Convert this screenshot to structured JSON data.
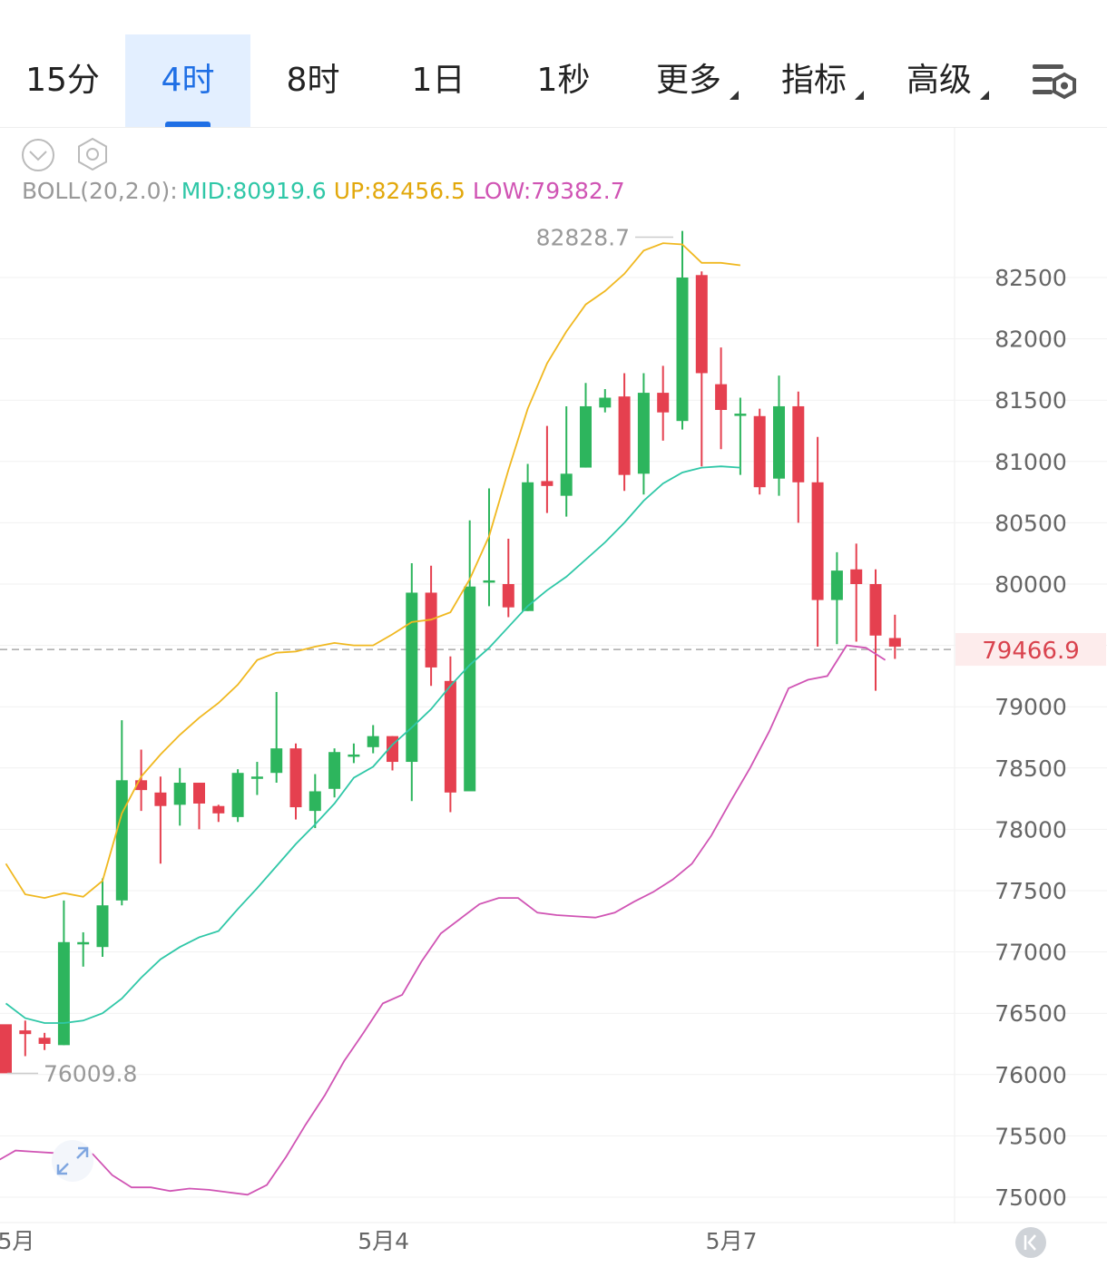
{
  "tabs": [
    {
      "label": "15分",
      "active": false,
      "dropdown": false
    },
    {
      "label": "4时",
      "active": true,
      "dropdown": false
    },
    {
      "label": "8时",
      "active": false,
      "dropdown": false
    },
    {
      "label": "1日",
      "active": false,
      "dropdown": false
    },
    {
      "label": "1秒",
      "active": false,
      "dropdown": false
    },
    {
      "label": "更多",
      "active": false,
      "dropdown": true
    },
    {
      "label": "指标",
      "active": false,
      "dropdown": true
    },
    {
      "label": "高级",
      "active": false,
      "dropdown": true
    }
  ],
  "toolbar": {
    "settings_icon": "chart-settings-icon",
    "collapse_icon": "chevron-down-circle-icon",
    "gear_icon": "hexagon-gear-icon",
    "expand_icon": "expand-arrows-icon",
    "back_icon": "back-to-latest-icon"
  },
  "indicator": {
    "name": "BOLL(20,2.0):",
    "mid": "MID:80919.6",
    "up": "UP:82456.5",
    "low": "LOW:79382.7"
  },
  "colors": {
    "up": "#2db55d",
    "down": "#e5404f",
    "mid": "#2fc7a7",
    "upper": "#f0b820",
    "lower": "#d054b4",
    "accent": "#1f6fe5",
    "price": "#d9434e"
  },
  "chart_data": {
    "type": "candlestick",
    "interval": "4时",
    "current_price": "79466.9",
    "high_marker": "82828.7",
    "low_marker": "76009.8",
    "ylim": [
      74850,
      82950
    ],
    "yticks": [
      75000,
      75500,
      76000,
      76500,
      77000,
      77500,
      78000,
      78500,
      79000,
      79500,
      80000,
      80500,
      81000,
      81500,
      82000,
      82500
    ],
    "ytick_labels": [
      "75000",
      "75500",
      "76000",
      "76500",
      "77000",
      "77500",
      "78000",
      "78500",
      "79000",
      "79500",
      "80000",
      "80500",
      "81000",
      "81500",
      "82000",
      "82500"
    ],
    "xlabels": [
      {
        "label": "5月",
        "index": -0.4
      },
      {
        "label": "5月4",
        "index": 18.6
      },
      {
        "label": "5月7",
        "index": 36.6
      }
    ],
    "candles": [
      [
        76410,
        76010,
        76380,
        76300
      ],
      [
        76360,
        76330,
        76440,
        76150
      ],
      [
        76300,
        76250,
        76340,
        76200
      ],
      [
        76240,
        77080,
        77420,
        76240
      ],
      [
        77080,
        77080,
        77160,
        76880
      ],
      [
        77040,
        77380,
        77600,
        76960
      ],
      [
        77420,
        78400,
        78890,
        77380
      ],
      [
        78400,
        78320,
        78650,
        78150
      ],
      [
        78300,
        78190,
        78430,
        77720
      ],
      [
        78200,
        78380,
        78500,
        78030
      ],
      [
        78380,
        78210,
        78380,
        78000
      ],
      [
        78190,
        78130,
        78200,
        78060
      ],
      [
        78100,
        78460,
        78490,
        78060
      ],
      [
        78430,
        78430,
        78550,
        78280
      ],
      [
        78460,
        78660,
        79120,
        78380
      ],
      [
        78660,
        78180,
        78700,
        78080
      ],
      [
        78150,
        78310,
        78450,
        78010
      ],
      [
        78330,
        78630,
        78660,
        78260
      ],
      [
        78610,
        78610,
        78700,
        78540
      ],
      [
        78670,
        78760,
        78850,
        78620
      ],
      [
        78760,
        78550,
        78760,
        78480
      ],
      [
        78550,
        79930,
        80170,
        78230
      ],
      [
        79930,
        79320,
        80150,
        79170
      ],
      [
        79210,
        78300,
        79410,
        78140
      ],
      [
        78310,
        79980,
        80520,
        78440
      ],
      [
        80030,
        80030,
        80780,
        79820
      ],
      [
        80000,
        79810,
        80370,
        79730
      ],
      [
        79780,
        80830,
        80980,
        79780
      ],
      [
        80840,
        80800,
        81290,
        80580
      ],
      [
        80720,
        80900,
        81450,
        80550
      ],
      [
        80950,
        81450,
        81640,
        80950
      ],
      [
        81440,
        81520,
        81590,
        81400
      ],
      [
        81530,
        80890,
        81720,
        80760
      ],
      [
        80900,
        81560,
        81720,
        80730
      ],
      [
        81560,
        81400,
        81780,
        81170
      ],
      [
        81330,
        82500,
        82880,
        81260
      ],
      [
        82520,
        81720,
        82550,
        80960
      ],
      [
        81630,
        81420,
        81930,
        81100
      ],
      [
        81390,
        81390,
        81520,
        80890
      ],
      [
        81370,
        80790,
        81430,
        80730
      ],
      [
        80860,
        81450,
        81700,
        80720
      ],
      [
        81450,
        80830,
        81570,
        80500
      ],
      [
        80830,
        79870,
        81200,
        79490
      ],
      [
        79870,
        80110,
        80260,
        79510
      ],
      [
        80120,
        80000,
        80330,
        79530
      ],
      [
        80000,
        79580,
        80120,
        79130
      ],
      [
        79560,
        79490,
        79750,
        79390
      ]
    ],
    "boll_mid_start": 0,
    "boll_mid": [
      76580,
      76460,
      76420,
      76420,
      76440,
      76500,
      76620,
      76790,
      76940,
      77040,
      77120,
      77170,
      77350,
      77520,
      77700,
      77880,
      78040,
      78210,
      78420,
      78510,
      78690,
      78830,
      78980,
      79170,
      79340,
      79480,
      79650,
      79820,
      79950,
      80060,
      80200,
      80340,
      80500,
      80680,
      80820,
      80910,
      80950,
      80960,
      80950
    ],
    "boll_up_start": 0,
    "boll_up": [
      77720,
      77470,
      77440,
      77480,
      77450,
      77580,
      78130,
      78430,
      78610,
      78770,
      78910,
      79030,
      79180,
      79380,
      79440,
      79450,
      79490,
      79520,
      79500,
      79500,
      79590,
      79690,
      79710,
      79770,
      80040,
      80390,
      80930,
      81430,
      81800,
      82060,
      82280,
      82390,
      82530,
      82720,
      82780,
      82770,
      82620,
      82620,
      82600
    ],
    "boll_low_start": -0.5,
    "boll_low": [
      75290,
      75380,
      75370,
      75360,
      75380,
      75350,
      75180,
      75080,
      75080,
      75050,
      75070,
      75060,
      75040,
      75020,
      75100,
      75330,
      75590,
      75830,
      76110,
      76340,
      76580,
      76650,
      76920,
      77150,
      77270,
      77390,
      77440,
      77440,
      77320,
      77300,
      77290,
      77280,
      77320,
      77410,
      77490,
      77590,
      77720,
      77950,
      78230,
      78500,
      78800,
      79150,
      79220,
      79250,
      79500,
      79480,
      79380
    ]
  }
}
